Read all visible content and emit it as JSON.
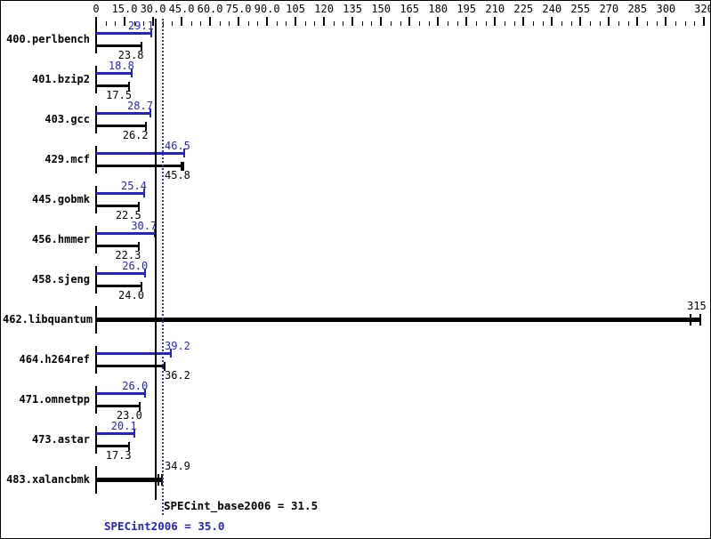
{
  "colors": {
    "peak_blue": "#2222cc",
    "base_black": "#000000",
    "dotted_line_blue": "#3030e8",
    "background": "#ffffff",
    "border": "#000000"
  },
  "chart_data": {
    "type": "bar",
    "orientation": "horizontal",
    "title": "",
    "xlabel": "",
    "ylabel": "",
    "axis": {
      "min": 0,
      "max": 320,
      "minor_tick_step": 5,
      "major_ticks": [
        0,
        15,
        30,
        45,
        60,
        75,
        90,
        105,
        120,
        135,
        150,
        165,
        180,
        195,
        210,
        225,
        240,
        255,
        270,
        285,
        300,
        320
      ],
      "major_tick_labels": [
        "0",
        "15.0",
        "30.0",
        "45.0",
        "60.0",
        "75.0",
        "90.0",
        "105",
        "120",
        "135",
        "150",
        "165",
        "180",
        "195",
        "210",
        "225",
        "240",
        "255",
        "270",
        "285",
        "300",
        "320"
      ],
      "grid": false
    },
    "series_names": [
      "SPECint2006 (peak, blue)",
      "SPECint_base2006 (base, black)"
    ],
    "benchmarks": [
      {
        "name": "400.perlbench",
        "merged": false,
        "peak": 29.1,
        "peak_label": "29.1",
        "base": 23.8,
        "base_label": "23.8"
      },
      {
        "name": "401.bzip2",
        "merged": false,
        "peak": 18.8,
        "peak_label": "18.8",
        "base": 17.5,
        "base_label": "17.5"
      },
      {
        "name": "403.gcc",
        "merged": false,
        "peak": 28.7,
        "peak_label": "28.7",
        "base": 26.2,
        "base_label": "26.2"
      },
      {
        "name": "429.mcf",
        "merged": false,
        "peak": 46.5,
        "peak_label": "46.5",
        "base": 45.8,
        "base_label": "45.8",
        "base_marks": [
          44.9
        ]
      },
      {
        "name": "445.gobmk",
        "merged": false,
        "peak": 25.4,
        "peak_label": "25.4",
        "base": 22.5,
        "base_label": "22.5"
      },
      {
        "name": "456.hmmer",
        "merged": false,
        "peak": 30.7,
        "peak_label": "30.7",
        "base": 22.3,
        "base_label": "22.3"
      },
      {
        "name": "458.sjeng",
        "merged": false,
        "peak": 26.0,
        "peak_label": "26.0",
        "base": 24.0,
        "base_label": "24.0"
      },
      {
        "name": "462.libquantum",
        "merged": true,
        "value": 315,
        "label": "315",
        "marks": [
          313.0,
          318.3
        ],
        "bar_to": 318.3
      },
      {
        "name": "464.h264ref",
        "merged": false,
        "peak": 39.2,
        "peak_label": "39.2",
        "base": 36.2,
        "base_label": "36.2"
      },
      {
        "name": "471.omnetpp",
        "merged": false,
        "peak": 26.0,
        "peak_label": "26.0",
        "base": 23.0,
        "base_label": "23.0"
      },
      {
        "name": "473.astar",
        "merged": false,
        "peak": 20.1,
        "peak_label": "20.1",
        "base": 17.3,
        "base_label": "17.3"
      },
      {
        "name": "483.xalancbmk",
        "merged": true,
        "value": 34.9,
        "label": "34.9",
        "marks": [
          33.0,
          34.9
        ],
        "bar_to": 34.9
      }
    ],
    "reference_lines": [
      {
        "id": "base_mean",
        "value": 31.5,
        "style": "solid",
        "color": "#000000"
      },
      {
        "id": "peak_mean",
        "value": 35.0,
        "style": "dotted",
        "color": "#3030e8"
      }
    ],
    "summary": {
      "base_text": "SPECint_base2006 = 31.5",
      "base_value": 31.5,
      "peak_text": "SPECint2006 = 35.0",
      "peak_value": 35.0
    },
    "legend_position": "none"
  }
}
